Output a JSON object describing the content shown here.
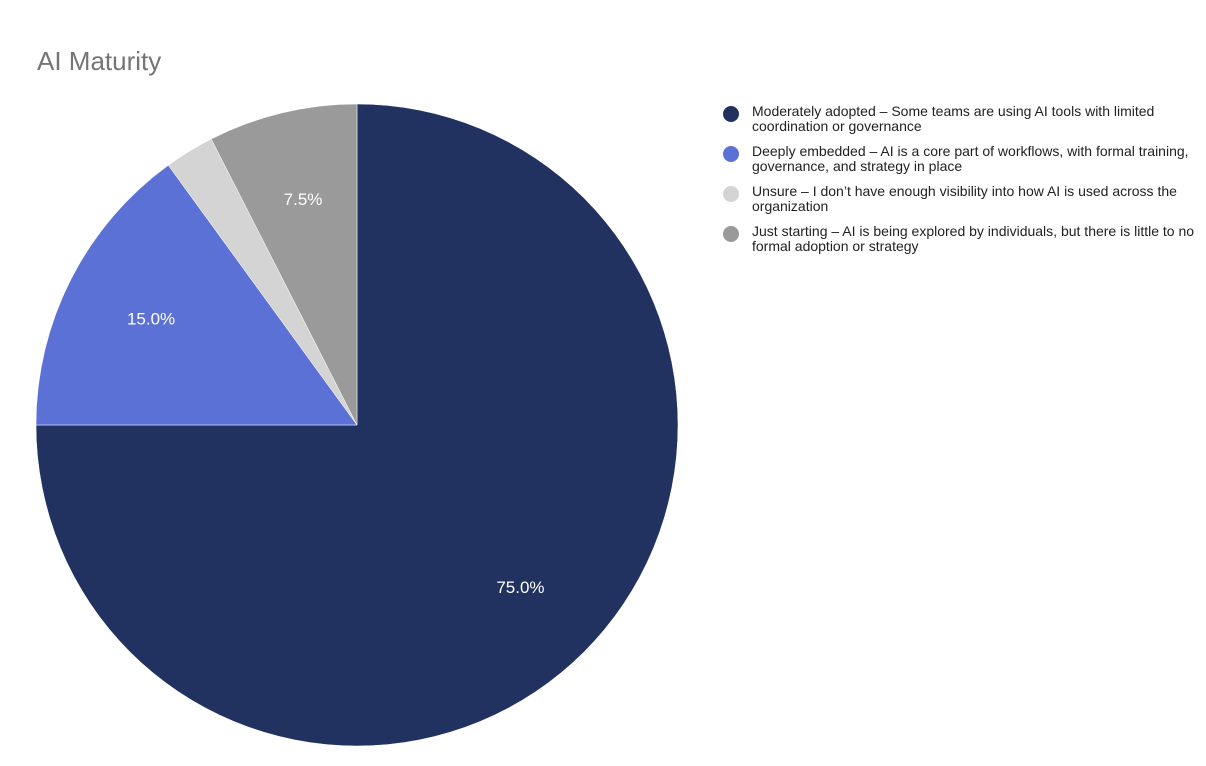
{
  "chart_data": {
    "type": "pie",
    "title": "AI Maturity",
    "legend_position": "right",
    "slices": [
      {
        "label": "Moderately adopted – Some teams are using AI tools with limited coordination or governance",
        "value": 75.0,
        "display": "75.0%",
        "color": "#213260"
      },
      {
        "label": "Deeply embedded – AI is a core part of workflows, with formal training, governance, and strategy in place",
        "value": 15.0,
        "display": "15.0%",
        "color": "#5b71d6"
      },
      {
        "label": "Unsure – I don’t have enough visibility into how AI is used across the organization",
        "value": 2.5,
        "display": "",
        "color": "#d4d4d4"
      },
      {
        "label": "Just starting – AI is being explored by individuals, but there is little to no formal adoption or strategy",
        "value": 7.5,
        "display": "7.5%",
        "color": "#9a9a9a"
      }
    ]
  }
}
